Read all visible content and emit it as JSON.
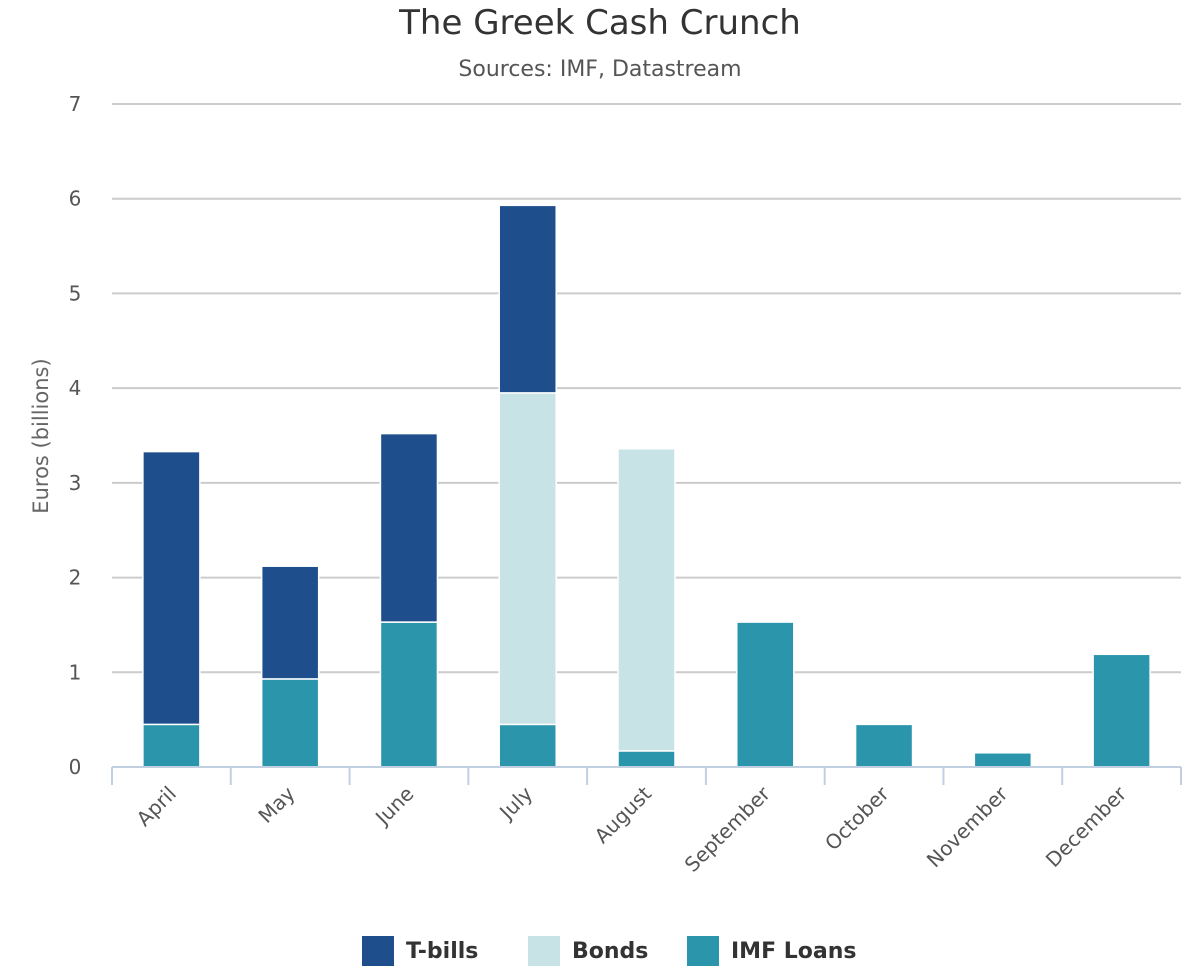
{
  "chart_data": {
    "type": "bar",
    "stacked": true,
    "title": "The Greek Cash Crunch",
    "subtitle": "Sources: IMF, Datastream",
    "xlabel": "",
    "ylabel": "Euros (billions)",
    "ylim": [
      0,
      7
    ],
    "yticks": [
      "0",
      "1",
      "2",
      "3",
      "4",
      "5",
      "6",
      "7"
    ],
    "grid": true,
    "legend_position": "bottom-center",
    "categories": [
      "April",
      "May",
      "June",
      "July",
      "August",
      "September",
      "October",
      "November",
      "December"
    ],
    "series": [
      {
        "name": "IMF Loans",
        "color": "#2b95ac",
        "values": [
          0.45,
          0.93,
          1.53,
          0.45,
          0.17,
          1.53,
          0.45,
          0.15,
          1.19
        ]
      },
      {
        "name": "Bonds",
        "color": "#c8e3e5",
        "values": [
          0,
          0,
          0,
          3.5,
          3.19,
          0,
          0,
          0,
          0
        ]
      },
      {
        "name": "T-bills",
        "color": "#1e4e8c",
        "values": [
          2.88,
          1.19,
          1.99,
          1.98,
          0,
          0,
          0,
          0,
          0
        ]
      }
    ],
    "legend_order": [
      "T-bills",
      "Bonds",
      "IMF Loans"
    ]
  }
}
